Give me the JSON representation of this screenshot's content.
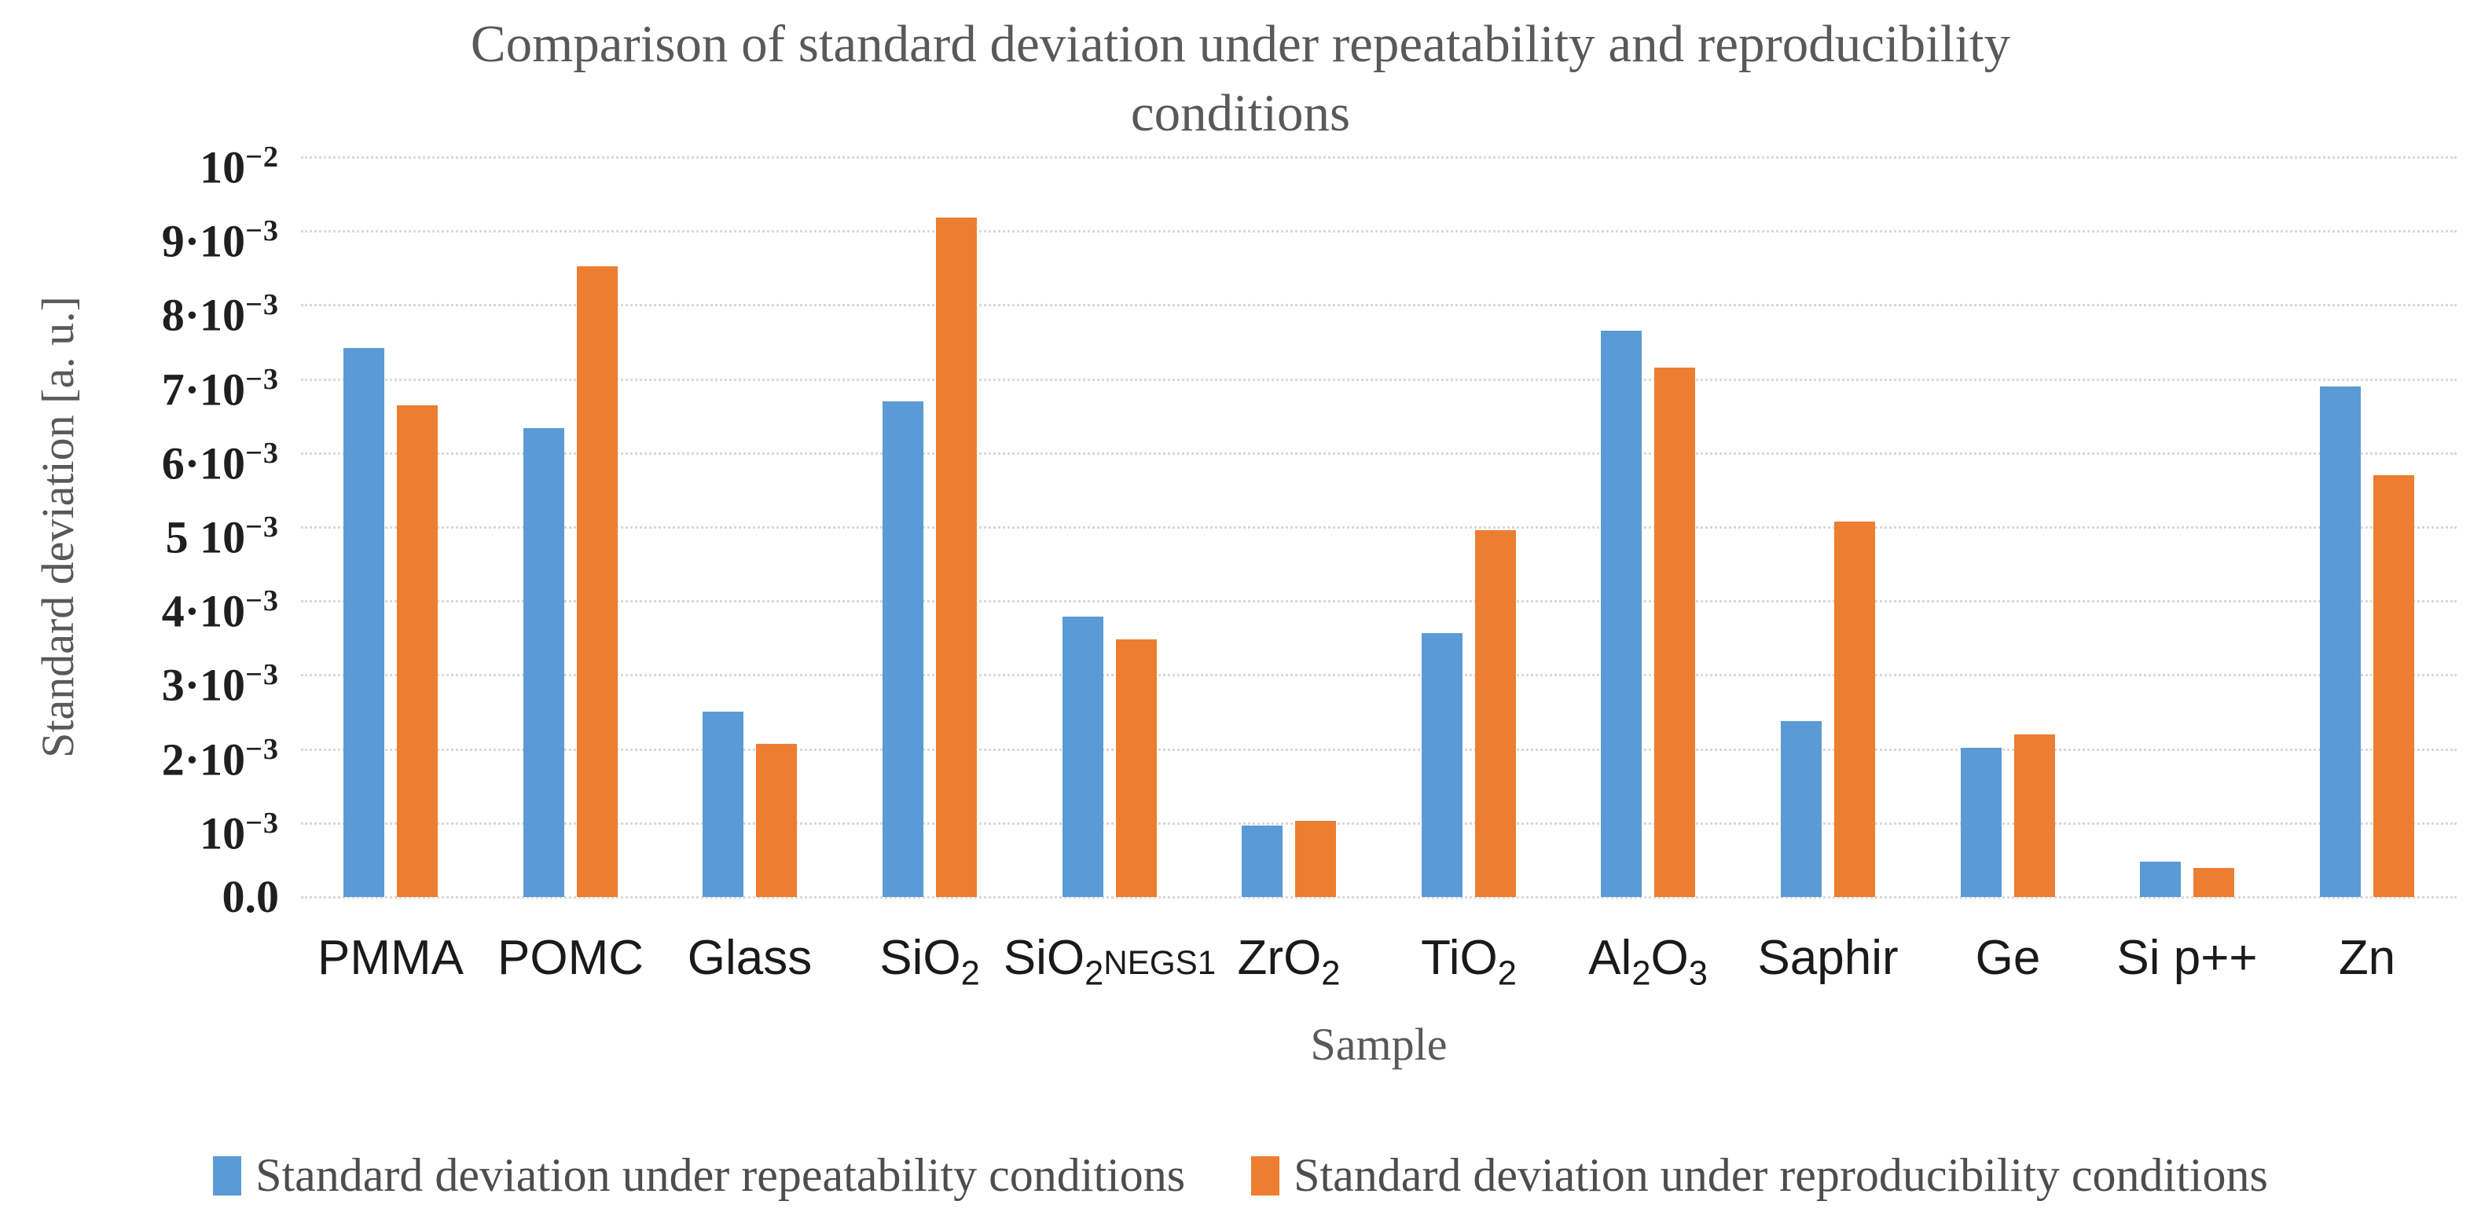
{
  "page": {
    "background": "#FFFFFF"
  },
  "title": {
    "line1": "Comparison of standard deviation under repeatability and reproducibility",
    "line2": "conditions",
    "color": "#595959"
  },
  "axes": {
    "y_title": "Standard deviation [a. u.]",
    "x_title": "Sample"
  },
  "colors": {
    "series_repeatability": "#5B9BD5",
    "series_reproducibility": "#ED7D31",
    "gridline": "#D9D9D9",
    "title_gray": "#595959",
    "label_black": "#1A1A1A"
  },
  "chart_data": {
    "type": "bar",
    "title": "Comparison of standard deviation under repeatability and reproducibility conditions",
    "xlabel": "Sample",
    "ylabel": "Standard deviation [a. u.]",
    "ylim": [
      0,
      0.01
    ],
    "grid": true,
    "legend_position": "bottom",
    "y_ticks": [
      "10^−2",
      "9·10^−3",
      "8·10^−3",
      "7·10^−3",
      "6·10^−3",
      "5 10^−3",
      "4·10^−3",
      "3·10^−3",
      "2·10^−3",
      "10^−3",
      "0.0"
    ],
    "categories": [
      "PMMA",
      "POMC",
      "Glass",
      "SiO2",
      "SiO2NEGS1",
      "ZrO2",
      "TiO2",
      "Al2O3",
      "Saphir",
      "Ge",
      "Si p++",
      "Zn"
    ],
    "category_labels": [
      {
        "parts": [
          {
            "t": "PMMA"
          }
        ]
      },
      {
        "parts": [
          {
            "t": "POMC"
          }
        ]
      },
      {
        "parts": [
          {
            "t": "Glass"
          }
        ]
      },
      {
        "parts": [
          {
            "t": "SiO"
          },
          {
            "t": "2",
            "sub": true
          }
        ]
      },
      {
        "parts": [
          {
            "t": "SiO"
          },
          {
            "t": "2",
            "sub": true
          },
          {
            "t": "NEGS1",
            "small": true
          }
        ]
      },
      {
        "parts": [
          {
            "t": "ZrO"
          },
          {
            "t": "2",
            "sub": true
          }
        ]
      },
      {
        "parts": [
          {
            "t": "TiO"
          },
          {
            "t": "2",
            "sub": true
          }
        ]
      },
      {
        "parts": [
          {
            "t": "Al"
          },
          {
            "t": "2",
            "sub": true
          },
          {
            "t": "O"
          },
          {
            "t": "3",
            "sub": true
          }
        ]
      },
      {
        "parts": [
          {
            "t": "Saphir"
          }
        ]
      },
      {
        "parts": [
          {
            "t": "Ge"
          }
        ]
      },
      {
        "parts": [
          {
            "t": "Si p++"
          }
        ]
      },
      {
        "parts": [
          {
            "t": "Zn"
          }
        ]
      }
    ],
    "series": [
      {
        "name": "Standard deviation under repeatability conditions",
        "color": "#5B9BD5",
        "values": [
          0.00742,
          0.00634,
          0.0025,
          0.0067,
          0.00379,
          0.00097,
          0.00357,
          0.00765,
          0.00238,
          0.00202,
          0.00048,
          0.0069
        ]
      },
      {
        "name": "Standard deviation under reproducibility conditions",
        "color": "#ED7D31",
        "values": [
          0.00665,
          0.00852,
          0.00207,
          0.00918,
          0.00348,
          0.00103,
          0.00496,
          0.00715,
          0.00507,
          0.0022,
          0.00039,
          0.0057
        ]
      }
    ]
  }
}
